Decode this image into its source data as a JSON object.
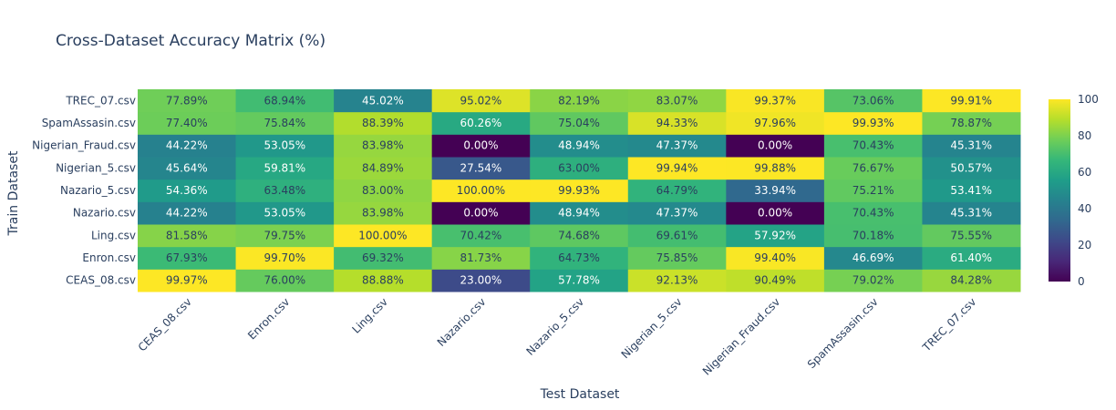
{
  "chart_data": {
    "type": "heatmap",
    "title": "Cross-Dataset Accuracy Matrix (%)",
    "xlabel": "Test Dataset",
    "ylabel": "Train Dataset",
    "x": [
      "CEAS_08.csv",
      "Enron.csv",
      "Ling.csv",
      "Nazario.csv",
      "Nazario_5.csv",
      "Nigerian_5.csv",
      "Nigerian_Fraud.csv",
      "SpamAssasin.csv",
      "TREC_07.csv"
    ],
    "y": [
      "CEAS_08.csv",
      "Enron.csv",
      "Ling.csv",
      "Nazario.csv",
      "Nazario_5.csv",
      "Nigerian_5.csv",
      "Nigerian_Fraud.csv",
      "SpamAssasin.csv",
      "TREC_07.csv"
    ],
    "z": [
      [
        99.97,
        76.0,
        88.88,
        23.0,
        57.78,
        92.13,
        90.49,
        79.02,
        84.28
      ],
      [
        67.93,
        99.7,
        69.32,
        81.73,
        64.73,
        75.85,
        99.4,
        46.69,
        61.4
      ],
      [
        81.58,
        79.75,
        100.0,
        70.42,
        74.68,
        69.61,
        57.92,
        70.18,
        75.55
      ],
      [
        44.22,
        53.05,
        83.98,
        0.0,
        48.94,
        47.37,
        0.0,
        70.43,
        45.31
      ],
      [
        54.36,
        63.48,
        83.0,
        100.0,
        99.93,
        64.79,
        33.94,
        75.21,
        53.41
      ],
      [
        45.64,
        59.81,
        84.89,
        27.54,
        63.0,
        99.94,
        99.88,
        76.67,
        50.57
      ],
      [
        44.22,
        53.05,
        83.98,
        0.0,
        48.94,
        47.37,
        0.0,
        70.43,
        45.31
      ],
      [
        77.4,
        75.84,
        88.39,
        60.26,
        75.04,
        94.33,
        97.96,
        99.93,
        78.87
      ],
      [
        77.89,
        68.94,
        45.02,
        95.02,
        82.19,
        83.07,
        99.37,
        73.06,
        99.91
      ]
    ],
    "text": [
      [
        "99.97%",
        "76.00%",
        "88.88%",
        "23.00%",
        "57.78%",
        "92.13%",
        "90.49%",
        "79.02%",
        "84.28%"
      ],
      [
        "67.93%",
        "99.70%",
        "69.32%",
        "81.73%",
        "64.73%",
        "75.85%",
        "99.40%",
        "46.69%",
        "61.40%"
      ],
      [
        "81.58%",
        "79.75%",
        "100.00%",
        "70.42%",
        "74.68%",
        "69.61%",
        "57.92%",
        "70.18%",
        "75.55%"
      ],
      [
        "44.22%",
        "53.05%",
        "83.98%",
        "0.00%",
        "48.94%",
        "47.37%",
        "0.00%",
        "70.43%",
        "45.31%"
      ],
      [
        "54.36%",
        "63.48%",
        "83.00%",
        "100.00%",
        "99.93%",
        "64.79%",
        "33.94%",
        "75.21%",
        "53.41%"
      ],
      [
        "45.64%",
        "59.81%",
        "84.89%",
        "27.54%",
        "63.00%",
        "99.94%",
        "99.88%",
        "76.67%",
        "50.57%"
      ],
      [
        "44.22%",
        "53.05%",
        "83.98%",
        "0.00%",
        "48.94%",
        "47.37%",
        "0.00%",
        "70.43%",
        "45.31%"
      ],
      [
        "77.40%",
        "75.84%",
        "88.39%",
        "60.26%",
        "75.04%",
        "94.33%",
        "97.96%",
        "99.93%",
        "78.87%"
      ],
      [
        "77.89%",
        "68.94%",
        "45.02%",
        "95.02%",
        "82.19%",
        "83.07%",
        "99.37%",
        "73.06%",
        "99.91%"
      ]
    ],
    "zrange": [
      0,
      100
    ],
    "colorscale": "viridis",
    "colorbar_ticks": [
      "0",
      "20",
      "40",
      "60",
      "80",
      "100"
    ],
    "colorbar_tick_values": [
      0,
      20,
      40,
      60,
      80,
      100
    ]
  }
}
